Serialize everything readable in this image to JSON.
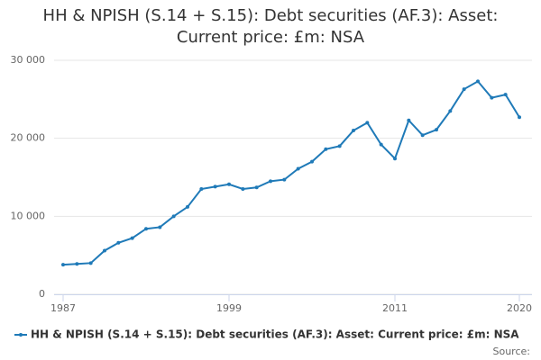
{
  "chart_data": {
    "type": "line",
    "title": "HH & NPISH (S.14 + S.15): Debt securities (AF.3): Asset: Current price: £m: NSA",
    "x": [
      1987,
      1988,
      1989,
      1990,
      1991,
      1992,
      1993,
      1994,
      1995,
      1996,
      1997,
      1998,
      1999,
      2000,
      2001,
      2002,
      2003,
      2004,
      2005,
      2006,
      2007,
      2008,
      2009,
      2010,
      2011,
      2012,
      2013,
      2014,
      2015,
      2016,
      2017,
      2018,
      2019,
      2020
    ],
    "series": [
      {
        "name": "HH & NPISH (S.14 + S.15): Debt securities (AF.3): Asset: Current price: £m: NSA",
        "color": "#1f7ab8",
        "values": [
          3800,
          3900,
          4000,
          5600,
          6600,
          7200,
          8400,
          8600,
          10000,
          11200,
          13500,
          13800,
          14100,
          13500,
          13700,
          14500,
          14700,
          16100,
          17000,
          18600,
          19000,
          21000,
          22000,
          19200,
          17400,
          22300,
          20400,
          21100,
          23500,
          26300,
          27300,
          25200,
          25600,
          22700
        ]
      }
    ],
    "xlim": [
      1987,
      2020
    ],
    "xticks": [
      1987,
      1999,
      2011,
      2020
    ],
    "ylim": [
      0,
      30000
    ],
    "yticks": [
      0,
      {
        "value": 10000,
        "label": "10 000"
      },
      {
        "value": 20000,
        "label": "20 000"
      },
      {
        "value": 30000,
        "label": "30 000"
      }
    ],
    "grid": true,
    "source": "Source:"
  }
}
